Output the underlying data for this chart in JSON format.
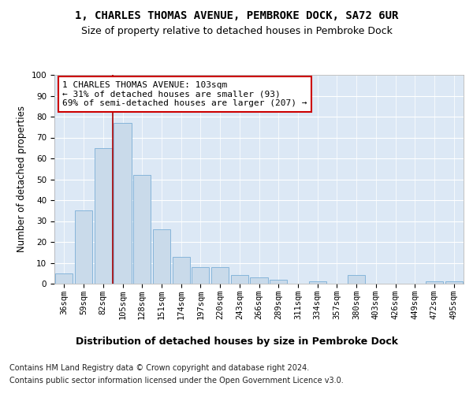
{
  "title": "1, CHARLES THOMAS AVENUE, PEMBROKE DOCK, SA72 6UR",
  "subtitle": "Size of property relative to detached houses in Pembroke Dock",
  "xlabel": "Distribution of detached houses by size in Pembroke Dock",
  "ylabel": "Number of detached properties",
  "categories": [
    "36sqm",
    "59sqm",
    "82sqm",
    "105sqm",
    "128sqm",
    "151sqm",
    "174sqm",
    "197sqm",
    "220sqm",
    "243sqm",
    "266sqm",
    "289sqm",
    "311sqm",
    "334sqm",
    "357sqm",
    "380sqm",
    "403sqm",
    "426sqm",
    "449sqm",
    "472sqm",
    "495sqm"
  ],
  "values": [
    5,
    35,
    65,
    77,
    52,
    26,
    13,
    8,
    8,
    4,
    3,
    2,
    0,
    1,
    0,
    4,
    0,
    0,
    0,
    1,
    1
  ],
  "bar_color": "#c9daea",
  "bar_edge_color": "#7aaed6",
  "vline_x_idx": 3,
  "vline_color": "#aa0000",
  "annotation_text": "1 CHARLES THOMAS AVENUE: 103sqm\n← 31% of detached houses are smaller (93)\n69% of semi-detached houses are larger (207) →",
  "annotation_box_color": "#ffffff",
  "annotation_box_edge": "#cc0000",
  "ylim": [
    0,
    100
  ],
  "yticks": [
    0,
    10,
    20,
    30,
    40,
    50,
    60,
    70,
    80,
    90,
    100
  ],
  "background_color": "#dce8f5",
  "footer_line1": "Contains HM Land Registry data © Crown copyright and database right 2024.",
  "footer_line2": "Contains public sector information licensed under the Open Government Licence v3.0.",
  "title_fontsize": 10,
  "subtitle_fontsize": 9,
  "xlabel_fontsize": 9,
  "ylabel_fontsize": 8.5,
  "tick_fontsize": 7.5,
  "annotation_fontsize": 8,
  "footer_fontsize": 7
}
